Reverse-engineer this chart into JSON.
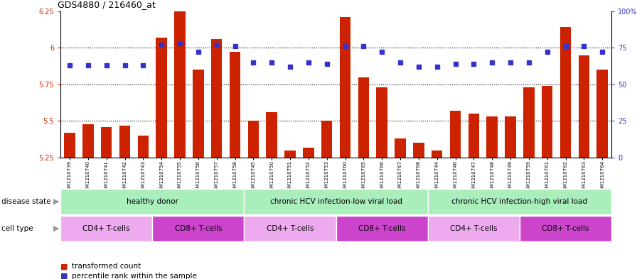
{
  "title": "GDS4880 / 216460_at",
  "samples": [
    "GSM1210739",
    "GSM1210740",
    "GSM1210741",
    "GSM1210742",
    "GSM1210743",
    "GSM1210754",
    "GSM1210755",
    "GSM1210756",
    "GSM1210757",
    "GSM1210758",
    "GSM1210745",
    "GSM1210750",
    "GSM1210751",
    "GSM1210752",
    "GSM1210753",
    "GSM1210760",
    "GSM1210765",
    "GSM1210766",
    "GSM1210767",
    "GSM1210768",
    "GSM1210744",
    "GSM1210746",
    "GSM1210747",
    "GSM1210748",
    "GSM1210749",
    "GSM1210759",
    "GSM1210761",
    "GSM1210762",
    "GSM1210763",
    "GSM1210764"
  ],
  "bar_values": [
    5.42,
    5.48,
    5.46,
    5.47,
    5.4,
    6.07,
    6.25,
    5.85,
    6.06,
    5.97,
    5.5,
    5.56,
    5.3,
    5.32,
    5.5,
    6.21,
    5.8,
    5.73,
    5.38,
    5.35,
    5.3,
    5.57,
    5.55,
    5.53,
    5.53,
    5.73,
    5.74,
    6.14,
    5.95,
    5.85
  ],
  "percentile_values": [
    63,
    63,
    63,
    63,
    63,
    77,
    78,
    72,
    77,
    76,
    65,
    65,
    62,
    65,
    64,
    76,
    76,
    72,
    65,
    62,
    62,
    64,
    64,
    65,
    65,
    65,
    72,
    76,
    76,
    72
  ],
  "bar_color": "#CC2200",
  "dot_color": "#3333CC",
  "ylim_left": [
    5.25,
    6.25
  ],
  "ylim_right": [
    0,
    100
  ],
  "yticks_left": [
    5.25,
    5.5,
    5.75,
    6.0,
    6.25
  ],
  "yticks_right": [
    0,
    25,
    50,
    75,
    100
  ],
  "ytick_labels_left": [
    "5.25",
    "5.5",
    "5.75",
    "6",
    "6.25"
  ],
  "ytick_labels_right": [
    "0",
    "25",
    "50",
    "75",
    "100%"
  ],
  "hline_values": [
    5.5,
    5.75,
    6.0
  ],
  "disease_groups": [
    {
      "label": "healthy donor",
      "start": 0,
      "end": 9
    },
    {
      "label": "chronic HCV infection-low viral load",
      "start": 10,
      "end": 19
    },
    {
      "label": "chronic HCV infection-high viral load",
      "start": 20,
      "end": 29
    }
  ],
  "cell_groups": [
    {
      "label": "CD4+ T-cells",
      "start": 0,
      "end": 4,
      "type": "cd4"
    },
    {
      "label": "CD8+ T-cells",
      "start": 5,
      "end": 9,
      "type": "cd8"
    },
    {
      "label": "CD4+ T-cells",
      "start": 10,
      "end": 14,
      "type": "cd4"
    },
    {
      "label": "CD8+ T-cells",
      "start": 15,
      "end": 19,
      "type": "cd8"
    },
    {
      "label": "CD4+ T-cells",
      "start": 20,
      "end": 24,
      "type": "cd4"
    },
    {
      "label": "CD8+ T-cells",
      "start": 25,
      "end": 29,
      "type": "cd8"
    }
  ],
  "disease_row_color": "#AAEEBB",
  "cd4_color": "#EEAAEE",
  "cd8_color": "#CC44CC",
  "disease_state_label": "disease state",
  "cell_type_label": "cell type",
  "legend_bar_label": "transformed count",
  "legend_dot_label": "percentile rank within the sample"
}
